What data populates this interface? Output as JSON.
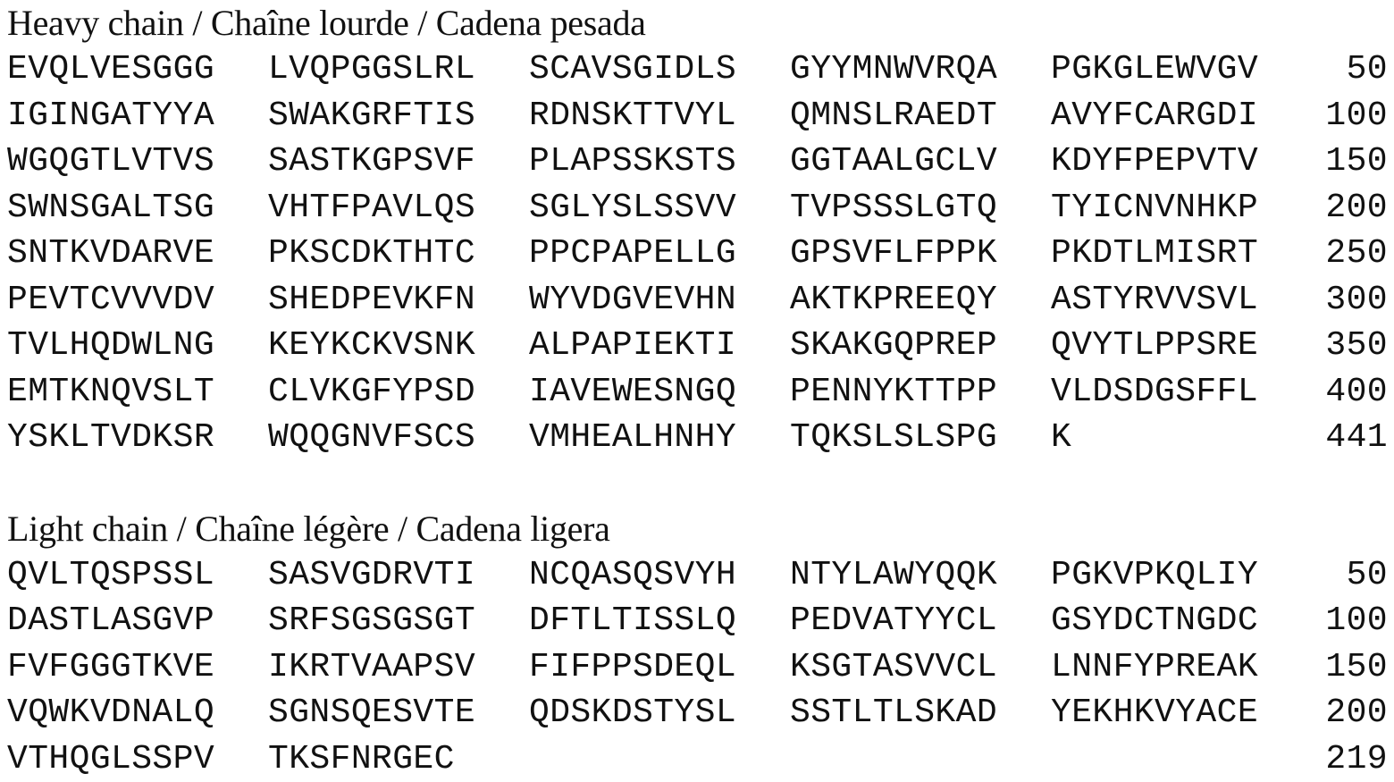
{
  "heavy": {
    "title": "Heavy chain / Chaîne lourde / Cadena pesada",
    "rows": [
      {
        "segments": [
          "EVQLVESGGG",
          "LVQPGGSLRL",
          "SCAVSGIDLS",
          "GYYMNWVRQA",
          "PGKGLEWVGV"
        ],
        "number": "50"
      },
      {
        "segments": [
          "IGINGATYYA",
          "SWAKGRFTIS",
          "RDNSKTTVYL",
          "QMNSLRAEDT",
          "AVYFCARGDI"
        ],
        "number": "100"
      },
      {
        "segments": [
          "WGQGTLVTVS",
          "SASTKGPSVF",
          "PLAPSSKSTS",
          "GGTAALGCLV",
          "KDYFPEPVTV"
        ],
        "number": "150"
      },
      {
        "segments": [
          "SWNSGALTSG",
          "VHTFPAVLQS",
          "SGLYSLSSVV",
          "TVPSSSLGTQ",
          "TYICNVNHKP"
        ],
        "number": "200"
      },
      {
        "segments": [
          "SNTKVDARVE",
          "PKSCDKTHTC",
          "PPCPAPELLG",
          "GPSVFLFPPK",
          "PKDTLMISRT"
        ],
        "number": "250"
      },
      {
        "segments": [
          "PEVTCVVVDV",
          "SHEDPEVKFN",
          "WYVDGVEVHN",
          "AKTKPREEQY",
          "ASTYRVVSVL"
        ],
        "number": "300"
      },
      {
        "segments": [
          "TVLHQDWLNG",
          "KEYKCKVSNK",
          "ALPAPIEKTI",
          "SKAKGQPREP",
          "QVYTLPPSRE"
        ],
        "number": "350"
      },
      {
        "segments": [
          "EMTKNQVSLT",
          "CLVKGFYPSD",
          "IAVEWESNGQ",
          "PENNYKTTPP",
          "VLDSDGSFFL"
        ],
        "number": "400"
      },
      {
        "segments": [
          "YSKLTVDKSR",
          "WQQGNVFSCS",
          "VMHEALHNHY",
          "TQKSLSLSPG",
          "K"
        ],
        "number": "441"
      }
    ]
  },
  "light": {
    "title": "Light chain / Chaîne légère / Cadena ligera",
    "rows": [
      {
        "segments": [
          "QVLTQSPSSL",
          "SASVGDRVTI",
          "NCQASQSVYH",
          "NTYLAWYQQK",
          "PGKVPKQLIY"
        ],
        "number": "50"
      },
      {
        "segments": [
          "DASTLASGVP",
          "SRFSGSGSGT",
          "DFTLTISSLQ",
          "PEDVATYYCL",
          "GSYDCTNGDC"
        ],
        "number": "100"
      },
      {
        "segments": [
          "FVFGGGTKVE",
          "IKRTVAAPSV",
          "FIFPPSDEQL",
          "KSGTASVVCL",
          "LNNFYPREAK"
        ],
        "number": "150"
      },
      {
        "segments": [
          "VQWKVDNALQ",
          "SGNSQESVTE",
          "QDSKDSTYSL",
          "SSTLTLSKAD",
          "YEKHKVYACE"
        ],
        "number": "200"
      },
      {
        "segments": [
          "VTHQGLSSPV",
          "TKSFNRGEC",
          "",
          "",
          ""
        ],
        "number": "219"
      }
    ]
  }
}
